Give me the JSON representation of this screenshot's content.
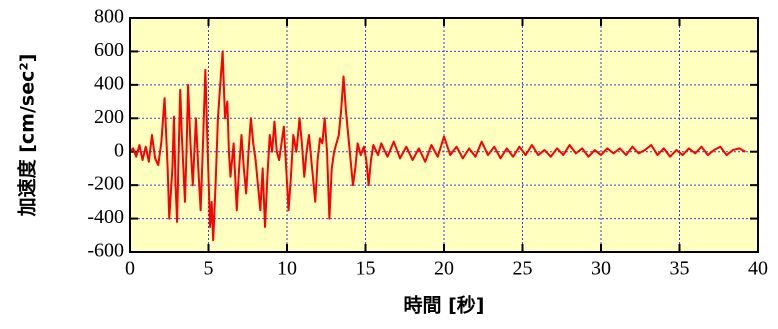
{
  "chart_data": {
    "type": "line",
    "x_label": "時間 [秒]",
    "y_label": "加速度 [cm/sec²]",
    "x": [
      0,
      0.2,
      0.4,
      0.6,
      0.8,
      1.0,
      1.2,
      1.4,
      1.6,
      1.8,
      2.0,
      2.2,
      2.4,
      2.5,
      2.7,
      2.8,
      2.9,
      3.0,
      3.1,
      3.2,
      3.3,
      3.5,
      3.6,
      3.7,
      3.85,
      4.0,
      4.1,
      4.2,
      4.35,
      4.5,
      4.65,
      4.8,
      4.95,
      5.1,
      5.2,
      5.3,
      5.45,
      5.6,
      5.75,
      5.9,
      6.05,
      6.2,
      6.3,
      6.4,
      6.5,
      6.6,
      6.7,
      6.8,
      6.95,
      7.1,
      7.25,
      7.4,
      7.55,
      7.7,
      7.85,
      8.0,
      8.15,
      8.3,
      8.45,
      8.6,
      8.75,
      8.9,
      9.05,
      9.2,
      9.35,
      9.5,
      9.65,
      9.8,
      9.95,
      10.1,
      10.25,
      10.4,
      10.6,
      10.8,
      10.95,
      11.1,
      11.25,
      11.4,
      11.6,
      11.8,
      11.95,
      12.1,
      12.25,
      12.4,
      12.55,
      12.7,
      12.85,
      13.0,
      13.15,
      13.3,
      13.45,
      13.6,
      13.75,
      13.9,
      14.05,
      14.2,
      14.35,
      14.5,
      14.7,
      14.9,
      15.05,
      15.2,
      15.35,
      15.5,
      15.8,
      16.0,
      16.4,
      16.8,
      17.2,
      17.6,
      18.0,
      18.4,
      18.8,
      19.2,
      19.6,
      20.0,
      20.4,
      20.8,
      21.2,
      21.6,
      22.0,
      22.4,
      22.8,
      23.2,
      23.6,
      24.0,
      24.4,
      24.8,
      25.2,
      25.6,
      26.0,
      26.4,
      26.8,
      27.2,
      27.6,
      28.0,
      28.4,
      28.8,
      29.2,
      29.6,
      30.0,
      30.4,
      30.8,
      31.2,
      31.6,
      32.0,
      32.4,
      32.8,
      33.2,
      33.6,
      34.0,
      34.4,
      34.8,
      35.2,
      35.6,
      36.0,
      36.4,
      36.8,
      37.2,
      37.6,
      38.0,
      38.4,
      38.8,
      39.2
    ],
    "series": [
      {
        "color": "#ff0000",
        "values": [
          0,
          20,
          -30,
          40,
          -50,
          30,
          -60,
          100,
          -40,
          -80,
          60,
          320,
          -100,
          -400,
          -100,
          210,
          -200,
          -420,
          0,
          370,
          100,
          -300,
          0,
          400,
          50,
          -200,
          0,
          200,
          -100,
          -350,
          50,
          490,
          0,
          -450,
          -300,
          -530,
          -200,
          200,
          400,
          600,
          200,
          300,
          0,
          -150,
          -50,
          50,
          -150,
          -350,
          -100,
          100,
          -100,
          -250,
          0,
          200,
          50,
          -50,
          -200,
          -350,
          -100,
          -450,
          -150,
          100,
          0,
          180,
          0,
          -50,
          50,
          150,
          -100,
          -350,
          -150,
          100,
          0,
          200,
          50,
          -150,
          0,
          100,
          -100,
          -300,
          -50,
          80,
          50,
          200,
          0,
          -400,
          -100,
          0,
          50,
          100,
          250,
          450,
          250,
          100,
          -50,
          -200,
          -100,
          50,
          -20,
          30,
          -50,
          -200,
          -50,
          40,
          -20,
          50,
          -30,
          60,
          -40,
          30,
          -50,
          20,
          -60,
          40,
          -30,
          90,
          -20,
          30,
          -40,
          20,
          -30,
          60,
          -20,
          30,
          -40,
          20,
          -30,
          30,
          -20,
          40,
          -20,
          10,
          -30,
          20,
          -20,
          40,
          -10,
          20,
          -30,
          10,
          -20,
          20,
          -10,
          20,
          -20,
          30,
          -10,
          10,
          40,
          -20,
          20,
          -30,
          10,
          -20,
          20,
          -10,
          30,
          -20,
          10,
          30,
          -20,
          10,
          20,
          0
        ]
      }
    ],
    "xlim": [
      0,
      40
    ],
    "xticks": [
      0,
      5,
      10,
      15,
      20,
      25,
      30,
      35,
      40
    ],
    "ylim": [
      -600,
      800
    ],
    "yticks": [
      -600,
      -400,
      -200,
      0,
      200,
      400,
      600,
      800
    ],
    "grid": true,
    "background": "#ffffc0"
  }
}
